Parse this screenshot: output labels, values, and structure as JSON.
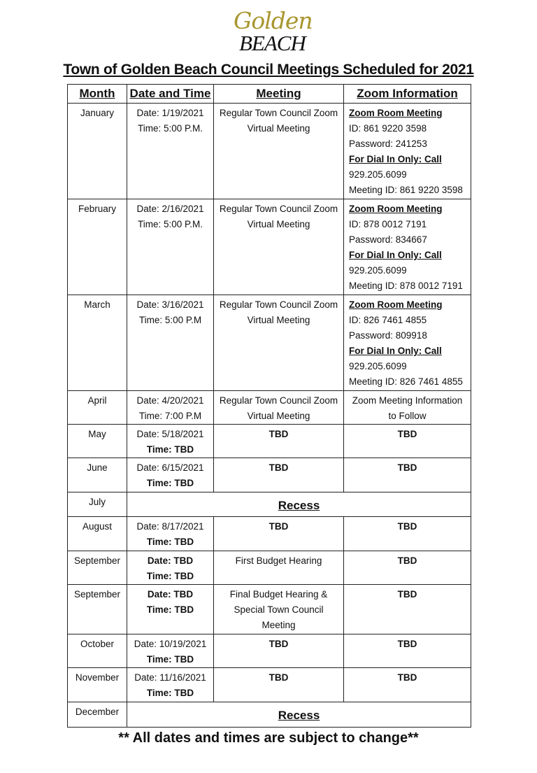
{
  "logo": {
    "line1": "Golden",
    "line2": "BEACH"
  },
  "title": "Town of Golden Beach Council Meetings Scheduled for 2021",
  "columns": [
    "Month",
    "Date and Time",
    "Meeting",
    "Zoom Information"
  ],
  "rows": [
    {
      "month": "January",
      "date": [
        {
          "t": "Date: 1/19/2021"
        },
        {
          "t": "Time: 5:00 P.M."
        }
      ],
      "meeting": [
        {
          "t": "Regular Town Council Zoom"
        },
        {
          "t": "Virtual Meeting"
        }
      ],
      "zoom_align": "left",
      "zoom": [
        {
          "t": "Zoom Room Meeting",
          "s": "bu"
        },
        {
          "t": "ID: 861 9220 3598"
        },
        {
          "t": "Password:  241253"
        },
        {
          "t": "For Dial In Only: Call",
          "s": "bu"
        },
        {
          "t": "929.205.6099"
        },
        {
          "t": "Meeting ID: 861 9220 3598"
        }
      ]
    },
    {
      "month": "February",
      "date": [
        {
          "t": "Date: 2/16/2021"
        },
        {
          "t": "Time: 5:00 P.M."
        }
      ],
      "meeting": [
        {
          "t": "Regular Town Council Zoom"
        },
        {
          "t": "Virtual Meeting"
        }
      ],
      "zoom_align": "left",
      "zoom": [
        {
          "t": "Zoom Room Meeting",
          "s": "bu"
        },
        {
          "t": "ID: 878 0012 7191"
        },
        {
          "t": "Password:  834667"
        },
        {
          "t": "For Dial In Only: Call",
          "s": "bu"
        },
        {
          "t": "929.205.6099"
        },
        {
          "t": "Meeting ID: 878 0012 7191"
        }
      ]
    },
    {
      "month": "March",
      "date": [
        {
          "t": "Date: 3/16/2021"
        },
        {
          "t": "Time: 5:00 P.M"
        }
      ],
      "meeting": [
        {
          "t": "Regular Town Council Zoom"
        },
        {
          "t": "Virtual Meeting"
        }
      ],
      "zoom_align": "left",
      "zoom": [
        {
          "t": "Zoom Room Meeting",
          "s": "bu"
        },
        {
          "t": "ID: 826 7461 4855"
        },
        {
          "t": "Password:  809918"
        },
        {
          "t": "For Dial In Only: Call",
          "s": "bu"
        },
        {
          "t": "929.205.6099"
        },
        {
          "t": "Meeting ID: 826 7461 4855"
        }
      ]
    },
    {
      "month": "April",
      "date": [
        {
          "t": "Date: 4/20/2021"
        },
        {
          "t": "Time: 7:00 P.M"
        }
      ],
      "meeting": [
        {
          "t": "Regular Town Council Zoom"
        },
        {
          "t": "Virtual Meeting"
        }
      ],
      "zoom_align": "center",
      "zoom": [
        {
          "t": "Zoom Meeting Information"
        },
        {
          "t": "to Follow"
        }
      ]
    },
    {
      "month": "May",
      "date": [
        {
          "t": "Date: 5/18/2021"
        },
        {
          "t": "Time: TBD",
          "s": "b"
        }
      ],
      "meeting": [
        {
          "t": "TBD",
          "s": "b"
        }
      ],
      "zoom_align": "center",
      "zoom": [
        {
          "t": "TBD",
          "s": "b"
        }
      ]
    },
    {
      "month": "June",
      "date": [
        {
          "t": "Date: 6/15/2021"
        },
        {
          "t": "Time: TBD",
          "s": "b"
        }
      ],
      "meeting": [
        {
          "t": "TBD",
          "s": "b"
        }
      ],
      "zoom_align": "center",
      "zoom": [
        {
          "t": "TBD",
          "s": "b"
        }
      ]
    },
    {
      "month": "July",
      "recess": "Recess"
    },
    {
      "month": "August",
      "date": [
        {
          "t": "Date: 8/17/2021"
        },
        {
          "t": "Time: TBD",
          "s": "b"
        }
      ],
      "meeting": [
        {
          "t": "TBD",
          "s": "b"
        }
      ],
      "zoom_align": "center",
      "zoom": [
        {
          "t": "TBD",
          "s": "b"
        }
      ]
    },
    {
      "month": "September",
      "date": [
        {
          "t": "Date: TBD",
          "s": "b"
        },
        {
          "t": "Time: TBD",
          "s": "b"
        }
      ],
      "meeting": [
        {
          "t": "First Budget Hearing"
        }
      ],
      "zoom_align": "center",
      "zoom": [
        {
          "t": "TBD",
          "s": "b"
        }
      ]
    },
    {
      "month": "September",
      "date": [
        {
          "t": "Date: TBD",
          "s": "b"
        },
        {
          "t": "Time: TBD",
          "s": "b"
        }
      ],
      "meeting": [
        {
          "t": "Final Budget Hearing  &"
        },
        {
          "t": "Special Town Council"
        },
        {
          "t": "Meeting"
        }
      ],
      "zoom_align": "center",
      "zoom": [
        {
          "t": "TBD",
          "s": "b"
        }
      ]
    },
    {
      "month": "October",
      "date": [
        {
          "t": "Date: 10/19/2021"
        },
        {
          "t": "Time: TBD",
          "s": "b"
        }
      ],
      "meeting": [
        {
          "t": "TBD",
          "s": "b"
        }
      ],
      "zoom_align": "center",
      "zoom": [
        {
          "t": "TBD",
          "s": "b"
        }
      ]
    },
    {
      "month": "November",
      "date": [
        {
          "t": "Date: 11/16/2021"
        },
        {
          "t": "Time: TBD",
          "s": "b"
        }
      ],
      "meeting": [
        {
          "t": "TBD",
          "s": "b"
        }
      ],
      "zoom_align": "center",
      "zoom": [
        {
          "t": "TBD",
          "s": "b"
        }
      ]
    },
    {
      "month": "December",
      "recess": "Recess"
    }
  ],
  "footer": "** All dates and times are subject to change**",
  "colors": {
    "logo_gold": "#a8962f",
    "text": "#111111",
    "border": "#222222"
  }
}
